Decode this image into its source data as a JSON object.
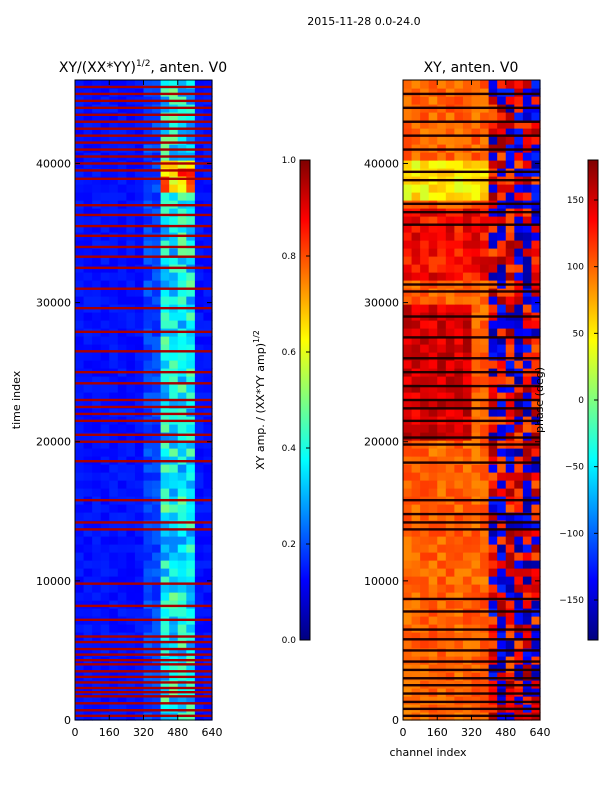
{
  "page_title": "2015-11-28 0.0-24.0",
  "colormap": [
    "#00007f",
    "#0000ff",
    "#007fff",
    "#00ffff",
    "#7fff7f",
    "#ffff00",
    "#ff7f00",
    "#ff0000",
    "#7f0000"
  ],
  "chart_data": [
    {
      "type": "heatmap",
      "title_prefix": "XY/(XX*YY)",
      "title_superscript": "1/2",
      "title_suffix": ", anten. V0",
      "xlabel": "",
      "ylabel": "time index",
      "xlim": [
        0,
        640
      ],
      "ylim": [
        0,
        46000
      ],
      "xticks": [
        0,
        160,
        320,
        480,
        640
      ],
      "yticks": [
        0,
        10000,
        20000,
        30000,
        40000
      ],
      "value_range": [
        0.0,
        1.0
      ],
      "colorbar": {
        "label_prefix": "XY amp. / (XX*YY amp)",
        "label_superscript": "1/2",
        "ticks": [
          "0.0",
          "0.2",
          "0.4",
          "0.6",
          "0.8",
          "1.0"
        ],
        "tick_values": [
          0.0,
          0.2,
          0.4,
          0.6,
          0.8,
          1.0
        ]
      },
      "description_of_data": "Mostly low normalized amplitude (~0.1) with elevated values (~0.3-0.5) in channels ~400-560; many saturated (1.0) red rows across time",
      "saturated_rows": [
        300,
        700,
        1200,
        1700,
        2000,
        2300,
        2700,
        3100,
        3500,
        4000,
        4300,
        4700,
        5100,
        5600,
        6000,
        7200,
        8200,
        9800,
        13700,
        14200,
        15800,
        18600,
        20000,
        20500,
        21500,
        22000,
        22500,
        23000,
        24200,
        25000,
        26500,
        27900,
        29600,
        31000,
        32500,
        33300,
        34000,
        34800,
        35500,
        36300,
        37000,
        38900,
        39500,
        40000,
        40500,
        41000,
        41500,
        42000,
        42500,
        43000,
        43500,
        44000,
        44500,
        45000,
        45500
      ]
    },
    {
      "type": "heatmap",
      "title": "XY, anten. V0",
      "xlabel": "channel index",
      "ylabel": "",
      "xlim": [
        0,
        640
      ],
      "ylim": [
        0,
        46000
      ],
      "xticks": [
        0,
        160,
        320,
        480,
        640
      ],
      "yticks": [
        0,
        10000,
        20000,
        30000,
        40000
      ],
      "value_range": [
        -180,
        180
      ],
      "colorbar": {
        "label": "phase (deg)",
        "ticks": [
          "−150",
          "−100",
          "−50",
          "0",
          "50",
          "100",
          "150"
        ],
        "tick_values": [
          -150,
          -100,
          -50,
          0,
          50,
          100,
          150
        ]
      },
      "description_of_data": "Phase mostly ~+100 deg (orange) with red near +150-180 at times 20000-30000, green/yellow bands near 38000-40000, noisy blue/red regions in channels ~400-640; many flagged rows in black/dark red",
      "saturated_rows": [
        300,
        800,
        1300,
        1900,
        2500,
        3000,
        3600,
        4200,
        5000,
        5800,
        6500,
        7800,
        8700,
        13700,
        14200,
        14800,
        15800,
        18500,
        19800,
        20300,
        21500,
        22400,
        23000,
        24000,
        25000,
        26000,
        27500,
        29000,
        30800,
        31300,
        35600,
        36500,
        37100,
        38800,
        39400,
        41000,
        42000,
        43000,
        44000,
        45000
      ]
    }
  ]
}
